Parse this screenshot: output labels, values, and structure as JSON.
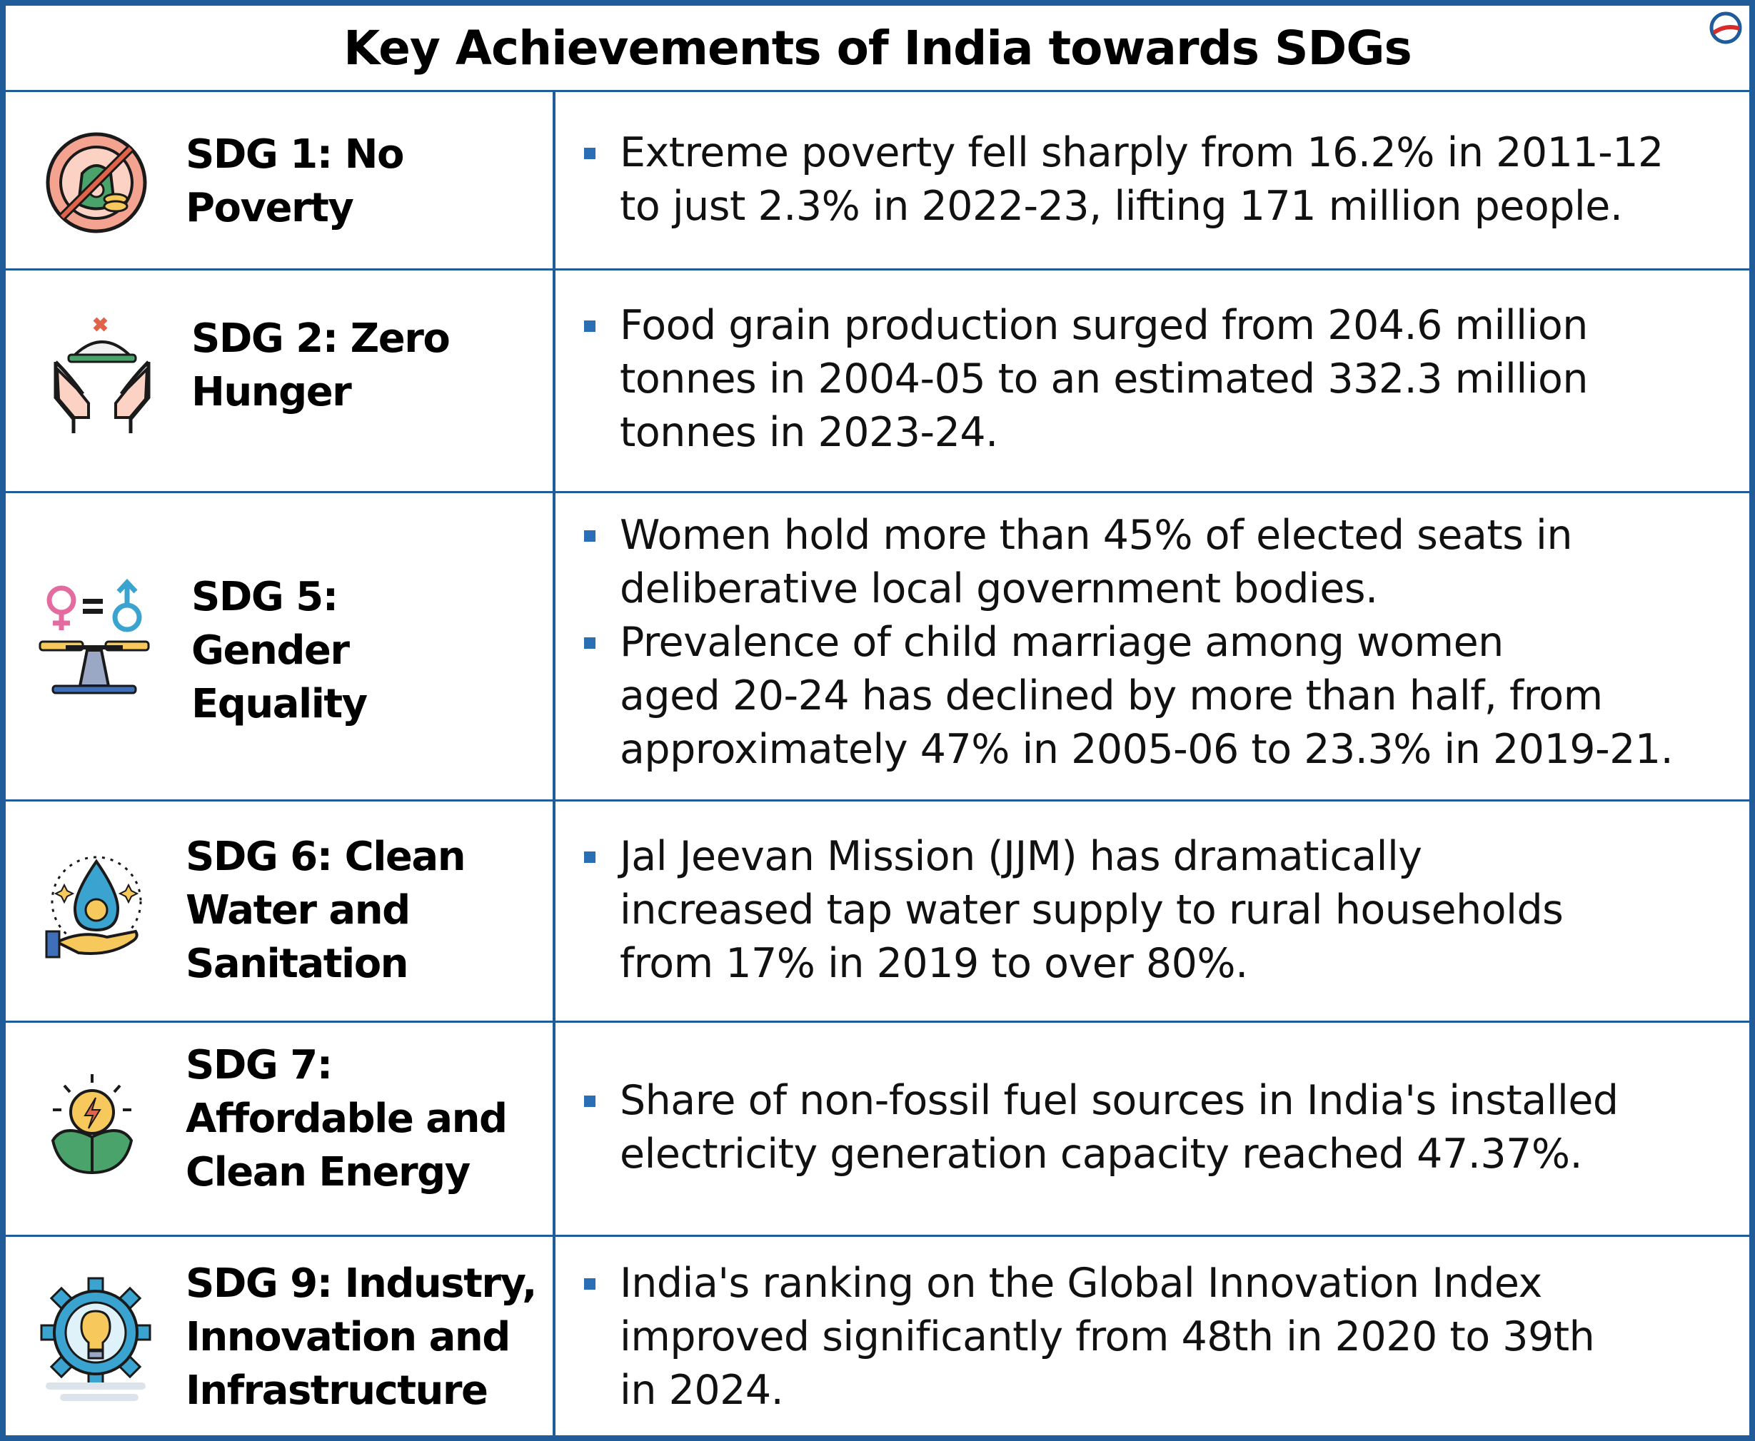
{
  "title": "Key Achievements of India towards SDGs",
  "accent_color": "#1f5c99",
  "bullet_color": "#2a6eb5",
  "rows": [
    {
      "icon": "no-poverty-icon",
      "name_lines": [
        "SDG 1: No",
        "Poverty"
      ],
      "points": [
        {
          "lines": [
            "Extreme poverty fell sharply from 16.2% in 2011-12",
            "to just 2.3% in 2022-23, lifting 171 million people."
          ]
        }
      ]
    },
    {
      "icon": "zero-hunger-icon",
      "name_lines": [
        "SDG 2: Zero",
        "Hunger"
      ],
      "points": [
        {
          "lines": [
            "Food grain production surged from 204.6 million",
            "tonnes in 2004-05 to an estimated 332.3 million",
            "tonnes in 2023-24."
          ]
        }
      ]
    },
    {
      "icon": "gender-equality-icon",
      "name_lines": [
        "SDG 5:",
        "Gender",
        "Equality"
      ],
      "points": [
        {
          "lines": [
            "Women hold more than 45% of elected seats in",
            "deliberative local government bodies."
          ]
        },
        {
          "lines": [
            "Prevalence of child marriage among women",
            "aged 20-24 has declined by more than half, from",
            "approximately 47% in 2005-06 to 23.3% in 2019-21."
          ]
        }
      ]
    },
    {
      "icon": "clean-water-icon",
      "name_lines": [
        "SDG 6: Clean",
        "Water and",
        "Sanitation"
      ],
      "points": [
        {
          "lines": [
            "Jal Jeevan Mission (JJM) has dramatically",
            "increased tap water supply to rural households",
            "from 17% in 2019 to over 80%."
          ]
        }
      ]
    },
    {
      "icon": "clean-energy-icon",
      "name_lines": [
        "SDG 7:",
        "Affordable and",
        "Clean Energy"
      ],
      "points": [
        {
          "lines": [
            "Share of non-fossil fuel sources in India's installed",
            "electricity generation capacity reached 47.37%."
          ]
        }
      ]
    },
    {
      "icon": "innovation-icon",
      "name_lines": [
        "SDG 9: Industry,",
        "Innovation and",
        "Infrastructure"
      ],
      "points": [
        {
          "lines": [
            "India's ranking on the Global Innovation Index",
            "improved significantly from 48th in 2020 to 39th",
            "in 2024."
          ]
        }
      ]
    }
  ]
}
